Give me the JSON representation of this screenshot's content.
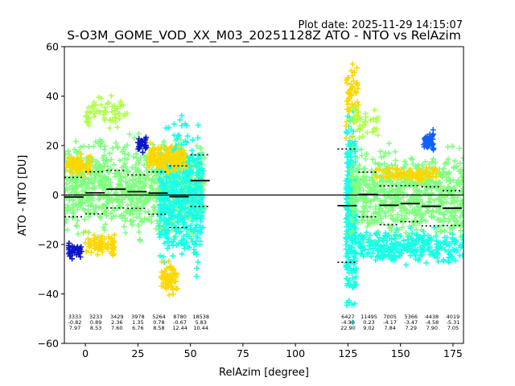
{
  "plot_date": "Plot date: 2025-11-29 14:15:07",
  "chart_data": {
    "type": "scatter",
    "title": "S-O3M_GOME_VOD_XX_M03_20251128Z ATO - NTO vs RelAzim",
    "xlabel": "RelAzim [degree]",
    "ylabel": "ATO - NTO [DU]",
    "xlim": [
      -10,
      180
    ],
    "ylim": [
      -60,
      60
    ],
    "xticks": [
      0,
      25,
      50,
      75,
      100,
      125,
      150,
      175
    ],
    "yticks": [
      -60,
      -40,
      -20,
      0,
      20,
      40,
      60
    ],
    "zero_line": 0,
    "colors": {
      "main_band": "#80ff80",
      "cyan": "#19ffe6",
      "yellow": "#ffd700",
      "blue": "#1060ff",
      "navy": "#0a14c8",
      "lime": "#b0ff4c",
      "stat_lines": "#000000"
    },
    "bins": [
      {
        "x0": -10,
        "x1": 0,
        "count": "3333",
        "mean": -0.82,
        "std": 7.97,
        "mean_label": "-0.82",
        "std_label": "7.97"
      },
      {
        "x0": 0,
        "x1": 10,
        "count": "3233",
        "mean": 0.89,
        "std": 8.53,
        "mean_label": "0.89",
        "std_label": "8.53"
      },
      {
        "x0": 10,
        "x1": 20,
        "count": "3429",
        "mean": 2.36,
        "std": 7.6,
        "mean_label": "2.36",
        "std_label": "7.60"
      },
      {
        "x0": 20,
        "x1": 30,
        "count": "3978",
        "mean": 1.35,
        "std": 6.76,
        "mean_label": "1.35",
        "std_label": "6.76"
      },
      {
        "x0": 30,
        "x1": 40,
        "count": "5264",
        "mean": 0.78,
        "std": 8.58,
        "mean_label": "0.78",
        "std_label": "8.58"
      },
      {
        "x0": 40,
        "x1": 50,
        "count": "8780",
        "mean": -0.67,
        "std": 12.44,
        "mean_label": "-0.67",
        "std_label": "12.44"
      },
      {
        "x0": 50,
        "x1": 60,
        "count": "18538",
        "mean": 5.83,
        "std": 10.44,
        "mean_label": "5.83",
        "std_label": "10.44"
      },
      {
        "x0": 120,
        "x1": 130,
        "count": "6427",
        "mean": -4.3,
        "std": 22.9,
        "mean_label": "-4.30",
        "std_label": "22.90"
      },
      {
        "x0": 130,
        "x1": 140,
        "count": "11495",
        "mean": 0.23,
        "std": 9.02,
        "mean_label": "0.23",
        "std_label": "9.02"
      },
      {
        "x0": 140,
        "x1": 150,
        "count": "7005",
        "mean": -4.17,
        "std": 7.84,
        "mean_label": "-4.17",
        "std_label": "7.84"
      },
      {
        "x0": 150,
        "x1": 160,
        "count": "5366",
        "mean": -3.47,
        "std": 7.29,
        "mean_label": "-3.47",
        "std_label": "7.29"
      },
      {
        "x0": 160,
        "x1": 170,
        "count": "4438",
        "mean": -4.58,
        "std": 7.9,
        "mean_label": "-4.58",
        "std_label": "7.90"
      },
      {
        "x0": 170,
        "x1": 180,
        "count": "4019",
        "mean": -5.31,
        "std": 7.05,
        "mean_label": "-5.31",
        "std_label": "7.05"
      }
    ],
    "clusters": [
      {
        "color": "main_band",
        "x0": -10,
        "x1": 57,
        "ylo": -22,
        "yhi": 28,
        "n": 900
      },
      {
        "color": "cyan",
        "x0": 35,
        "x1": 56,
        "ylo": -38,
        "yhi": 38,
        "n": 500
      },
      {
        "color": "cyan",
        "x0": 124,
        "x1": 129,
        "ylo": -58,
        "yhi": 45,
        "n": 300
      },
      {
        "color": "main_band",
        "x0": 126,
        "x1": 180,
        "ylo": -24,
        "yhi": 24,
        "n": 700
      },
      {
        "color": "cyan",
        "x0": 130,
        "x1": 180,
        "ylo": -30,
        "yhi": -12,
        "n": 300
      },
      {
        "color": "yellow",
        "x0": -9,
        "x1": 3,
        "ylo": 6,
        "yhi": 18,
        "n": 80
      },
      {
        "color": "yellow",
        "x0": 30,
        "x1": 48,
        "ylo": 8,
        "yhi": 22,
        "n": 150
      },
      {
        "color": "yellow",
        "x0": 36,
        "x1": 44,
        "ylo": -42,
        "yhi": -25,
        "n": 60
      },
      {
        "color": "yellow",
        "x0": 0,
        "x1": 14,
        "ylo": -26,
        "yhi": -14,
        "n": 70
      },
      {
        "color": "yellow",
        "x0": 124,
        "x1": 130,
        "ylo": 20,
        "yhi": 58,
        "n": 50
      },
      {
        "color": "yellow",
        "x0": 138,
        "x1": 168,
        "ylo": 5,
        "yhi": 12,
        "n": 90
      },
      {
        "color": "navy",
        "x0": -8,
        "x1": -2,
        "ylo": -27,
        "yhi": -18,
        "n": 40
      },
      {
        "color": "navy",
        "x0": 25,
        "x1": 29,
        "ylo": 17,
        "yhi": 24,
        "n": 25
      },
      {
        "color": "blue",
        "x0": 161,
        "x1": 166,
        "ylo": 16,
        "yhi": 27,
        "n": 40
      },
      {
        "color": "lime",
        "x0": 0,
        "x1": 20,
        "ylo": 24,
        "yhi": 43,
        "n": 60
      },
      {
        "color": "lime",
        "x0": 126,
        "x1": 140,
        "ylo": 20,
        "yhi": 38,
        "n": 40
      }
    ]
  }
}
